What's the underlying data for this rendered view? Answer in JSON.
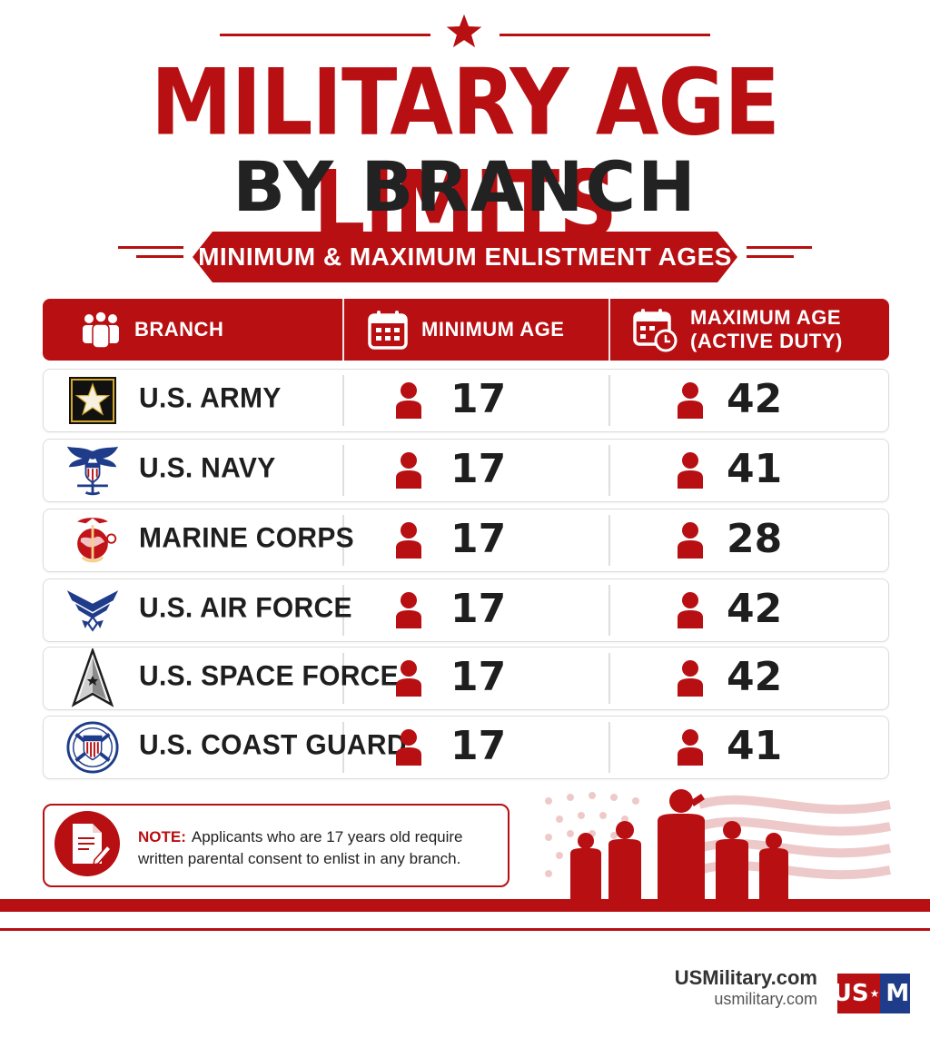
{
  "header": {
    "title_line1": "MILITARY AGE LIMITS",
    "title_line2": "BY BRANCH",
    "subtitle": "MINIMUM & MAXIMUM ENLISTMENT AGES"
  },
  "table": {
    "columns": {
      "branch": "BRANCH",
      "min_age": "MINIMUM AGE",
      "max_age_line1": "MAXIMUM AGE",
      "max_age_line2": "(ACTIVE DUTY)"
    },
    "rows": [
      {
        "branch": "U.S. ARMY",
        "emblem": "army-star-icon",
        "min": "17",
        "max": "42"
      },
      {
        "branch": "U.S. NAVY",
        "emblem": "navy-eagle-icon",
        "min": "17",
        "max": "41"
      },
      {
        "branch": "MARINE CORPS",
        "emblem": "marine-globe-anchor-icon",
        "min": "17",
        "max": "28"
      },
      {
        "branch": "U.S. AIR FORCE",
        "emblem": "air-force-wings-icon",
        "min": "17",
        "max": "42"
      },
      {
        "branch": "U.S. SPACE FORCE",
        "emblem": "space-force-delta-icon",
        "min": "17",
        "max": "42"
      },
      {
        "branch": "U.S. COAST GUARD",
        "emblem": "coast-guard-shield-icon",
        "min": "17",
        "max": "41"
      }
    ]
  },
  "note": {
    "label": "NOTE:",
    "text_line1": "Applicants who are 17 years old require",
    "text_line2": "written parental consent to enlist in any branch."
  },
  "footer": {
    "site_name": "USMilitary.com",
    "site_url": "usmilitary.com",
    "logo_left": "US",
    "logo_right": "M"
  },
  "colors": {
    "accent_red": "#b70f12",
    "text_dark": "#1e1e1e",
    "logo_blue": "#1f3c8a"
  }
}
